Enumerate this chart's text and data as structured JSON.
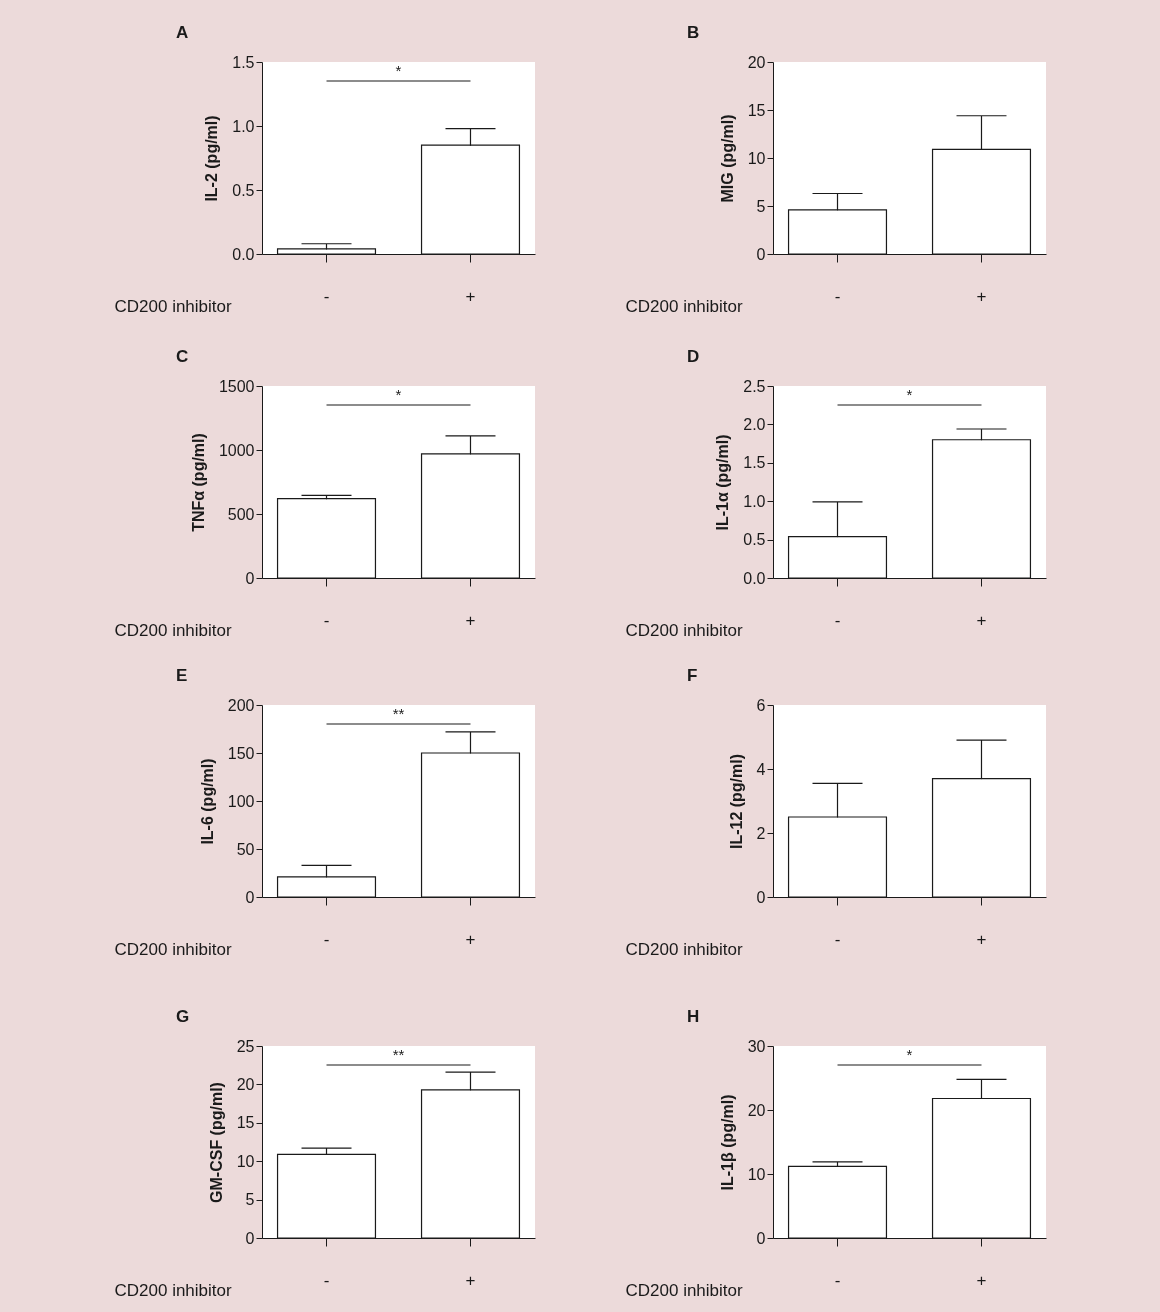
{
  "chart_data": [
    {
      "type": "bar",
      "title": "A",
      "xlabel": "CD200 inhibitor",
      "ylabel": "IL-2 (pg/ml)",
      "categories": [
        "-",
        "+"
      ],
      "values": [
        0.04,
        0.85
      ],
      "errors": [
        [
          0.04,
          0.08
        ],
        [
          0.85,
          0.98
        ]
      ],
      "color": "#ffffff",
      "ylim": [
        0,
        1.5
      ],
      "yticks": [
        {
          "value": 0,
          "label": "0.0"
        },
        {
          "value": 0.5,
          "label": "0.5"
        },
        {
          "value": 1,
          "label": "1.0"
        },
        {
          "value": 1.5,
          "label": "1.5"
        }
      ],
      "annotations": [
        "*"
      ]
    },
    {
      "type": "bar",
      "title": "B",
      "xlabel": "CD200 inhibitor",
      "ylabel": "MIG (pg/ml)",
      "categories": [
        "-",
        "+"
      ],
      "values": [
        4.6,
        10.9
      ],
      "errors": [
        [
          4.6,
          6.3
        ],
        [
          10.9,
          14.4
        ]
      ],
      "color": "#ffffff",
      "ylim": [
        0,
        20
      ],
      "yticks": [
        0,
        5,
        10,
        15,
        20
      ]
    },
    {
      "type": "bar",
      "title": "C",
      "xlabel": "CD200 inhibitor",
      "ylabel": "TNFα (pg/ml)",
      "categories": [
        "-",
        "+"
      ],
      "values": [
        620,
        970
      ],
      "errors": [
        [
          620,
          645
        ],
        [
          970,
          1110
        ]
      ],
      "color": "#ffffff",
      "ylim": [
        0,
        1500
      ],
      "yticks": [
        0,
        500,
        1000,
        1500
      ],
      "annotations": [
        "*"
      ]
    },
    {
      "type": "bar",
      "title": "D",
      "xlabel": "CD200 inhibitor",
      "ylabel": "IL-1α (pg/ml)",
      "categories": [
        "-",
        "+"
      ],
      "values": [
        0.54,
        1.8
      ],
      "errors": [
        [
          0.54,
          0.99
        ],
        [
          1.8,
          1.94
        ]
      ],
      "color": "#ffffff",
      "ylim": [
        0,
        2.5
      ],
      "yticks": [
        {
          "value": 0,
          "label": "0.0"
        },
        {
          "value": 0.5,
          "label": "0.5"
        },
        {
          "value": 1,
          "label": "1.0"
        },
        {
          "value": 1.5,
          "label": "1.5"
        },
        {
          "value": 2,
          "label": "2.0"
        },
        {
          "value": 2.5,
          "label": "2.5"
        }
      ],
      "annotations": [
        "*"
      ]
    },
    {
      "type": "bar",
      "title": "E",
      "xlabel": "CD200 inhibitor",
      "ylabel": "IL-6 (pg/ml)",
      "categories": [
        "-",
        "+"
      ],
      "values": [
        21,
        150
      ],
      "errors": [
        [
          21,
          33
        ],
        [
          150,
          172
        ]
      ],
      "color": "#ffffff",
      "ylim": [
        0,
        200
      ],
      "yticks": [
        0,
        50,
        100,
        150,
        200
      ],
      "annotations": [
        "**"
      ]
    },
    {
      "type": "bar",
      "title": "F",
      "xlabel": "CD200 inhibitor",
      "ylabel": "IL-12 (pg/ml)",
      "categories": [
        "-",
        "+"
      ],
      "values": [
        2.5,
        3.7
      ],
      "errors": [
        [
          2.5,
          3.55
        ],
        [
          3.7,
          4.9
        ]
      ],
      "color": "#ffffff",
      "ylim": [
        0,
        6
      ],
      "yticks": [
        0,
        2,
        4,
        6
      ]
    },
    {
      "type": "bar",
      "title": "G",
      "xlabel": "CD200 inhibitor",
      "ylabel": "GM-CSF (pg/ml)",
      "categories": [
        "-",
        "+"
      ],
      "values": [
        10.9,
        19.3
      ],
      "errors": [
        [
          10.9,
          11.7
        ],
        [
          19.3,
          21.6
        ]
      ],
      "color": "#ffffff",
      "ylim": [
        0,
        25
      ],
      "yticks": [
        0,
        5,
        10,
        15,
        20,
        25
      ],
      "annotations": [
        "**"
      ]
    },
    {
      "type": "bar",
      "title": "H",
      "xlabel": "CD200 inhibitor",
      "ylabel": "IL-1β (pg/ml)",
      "categories": [
        "-",
        "+"
      ],
      "values": [
        11.2,
        21.8
      ],
      "errors": [
        [
          11.2,
          11.9
        ],
        [
          21.8,
          24.8
        ]
      ],
      "color": "#ffffff",
      "ylim": [
        0,
        30
      ],
      "yticks": [
        0,
        10,
        20,
        30
      ],
      "annotations": [
        "*"
      ]
    }
  ]
}
